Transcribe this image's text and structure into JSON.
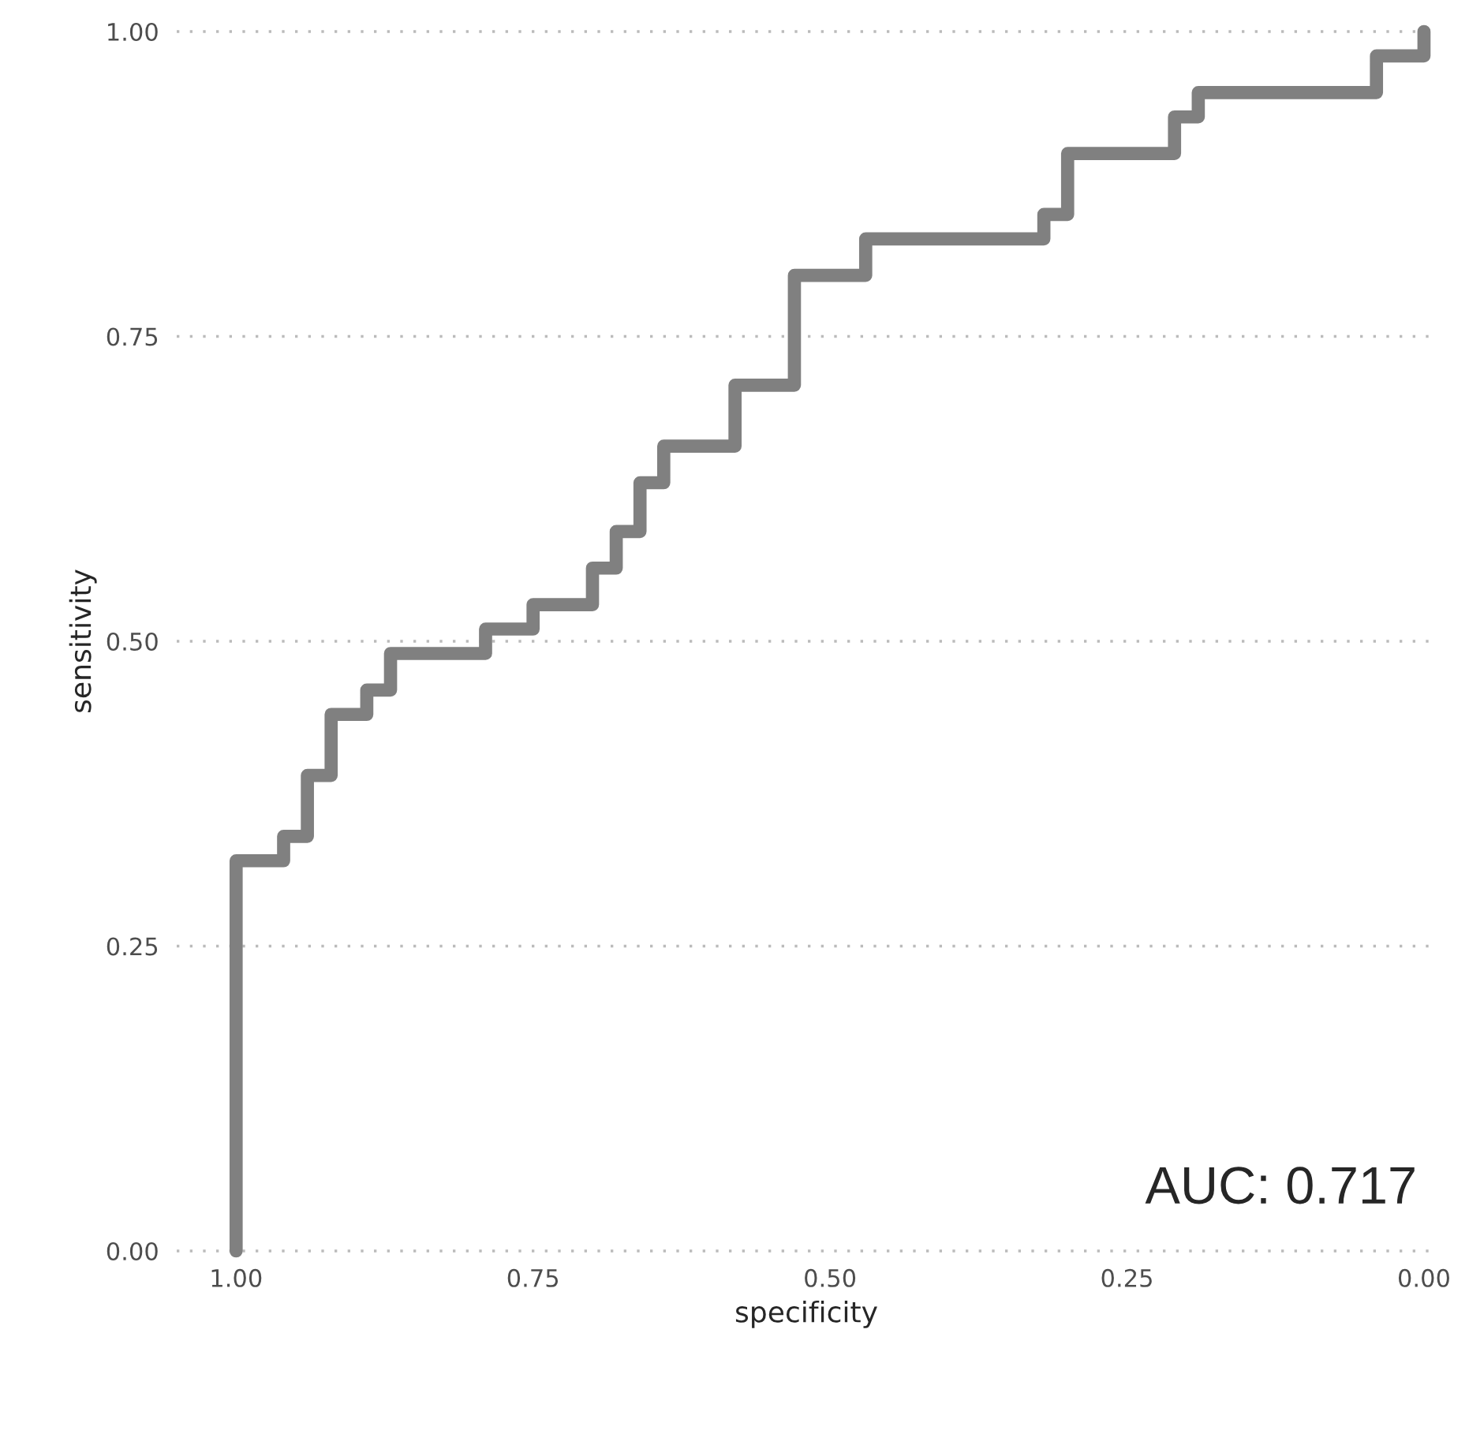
{
  "chart_data": {
    "type": "step",
    "xlabel": "specificity",
    "ylabel": "sensitivity",
    "x": [
      1.0,
      1.0,
      0.96,
      0.94,
      0.92,
      0.89,
      0.87,
      0.79,
      0.75,
      0.7,
      0.68,
      0.66,
      0.64,
      0.58,
      0.53,
      0.47,
      0.32,
      0.3,
      0.21,
      0.19,
      0.04,
      0.0
    ],
    "series": [
      {
        "color": "#808080",
        "values": [
          0.0,
          0.32,
          0.34,
          0.39,
          0.44,
          0.46,
          0.49,
          0.51,
          0.53,
          0.56,
          0.59,
          0.63,
          0.66,
          0.71,
          0.8,
          0.83,
          0.85,
          0.9,
          0.93,
          0.95,
          0.98,
          1.0
        ]
      }
    ],
    "xlim": [
      1.05,
      -0.01
    ],
    "ylim": [
      0.0,
      1.0
    ],
    "xticks": [
      {
        "value": 1.0,
        "label": "1.00"
      },
      {
        "value": 0.75,
        "label": "0.75"
      },
      {
        "value": 0.5,
        "label": "0.50"
      },
      {
        "value": 0.25,
        "label": "0.25"
      },
      {
        "value": 0.0,
        "label": "0.00"
      }
    ],
    "yticks": [
      {
        "value": 0.0,
        "label": "0.00"
      },
      {
        "value": 0.25,
        "label": "0.25"
      },
      {
        "value": 0.5,
        "label": "0.50"
      },
      {
        "value": 0.75,
        "label": "0.75"
      },
      {
        "value": 1.0,
        "label": "1.00"
      }
    ],
    "grid": "y",
    "line_style": "solid",
    "legend": false,
    "annotations": [
      "AUC: 0.717"
    ]
  }
}
